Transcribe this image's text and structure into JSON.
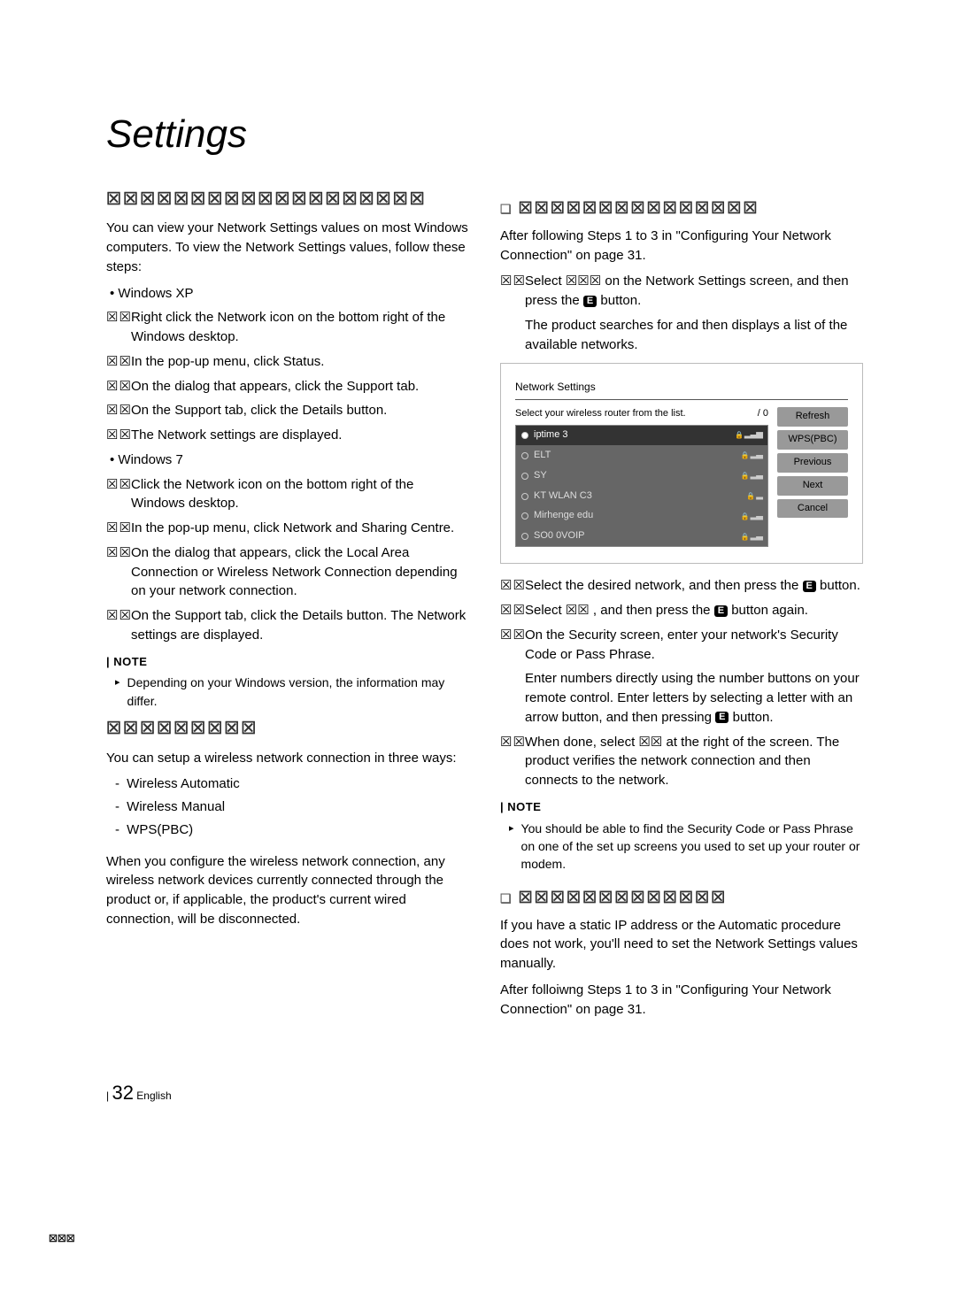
{
  "page_title": "Settings",
  "col1": {
    "h1": "☒☒☒☒☒☒☒☒☒☒☒☒☒☒☒☒☒☒☒",
    "intro": "You can view your Network Settings values on most Windows computers. To view the Network Settings values, follow these steps:",
    "win_xp": "Windows XP",
    "xp_steps": [
      "Right click the Network icon on the bottom right of the Windows desktop.",
      "In the pop-up menu, click Status.",
      "On the dialog that appears, click the Support tab.",
      "On the Support tab, click the Details button.",
      "The Network settings are displayed."
    ],
    "win_7": "Windows 7",
    "w7_steps": [
      "Click the Network icon on the bottom right of the Windows desktop.",
      "In the pop-up menu, click Network and Sharing Centre.",
      "On the dialog that appears, click the Local Area Connection or Wireless Network Connection depending on your network connection.",
      "On the Support tab, click the Details button. The Network settings are displayed."
    ],
    "note_label": "NOTE",
    "note1": "Depending on your Windows version, the information may differ.",
    "h2": "☒☒☒☒☒☒☒☒☒",
    "wireless_intro": "You can setup a wireless network connection in three ways:",
    "wireless_ways": [
      "Wireless Automatic",
      "Wireless Manual",
      "WPS(PBC)"
    ],
    "wireless_note": "When you configure the wireless network connection, any wireless network devices currently connected through the product or, if applicable, the product's current wired connection, will be disconnected."
  },
  "col2": {
    "sub1": "☒☒☒☒☒☒☒☒☒☒☒☒☒☒☒",
    "intro2": "After following Steps 1 to 3 in \"Configuring Your Network Connection\" on page 31.",
    "step1_pre": "Select ",
    "step1_mid": " on the Network Settings screen, and then press the ",
    "step1_post": " button.",
    "step1_cont": "The product searches for and then displays a list of the available networks.",
    "dialog": {
      "title": "Network Settings",
      "sub": "Select your wireless router from the list.",
      "count": "/ 0",
      "rows": [
        {
          "name": "iptime 3",
          "sig": "▂▃▅",
          "sel": true
        },
        {
          "name": "ELT",
          "sig": "▂▃",
          "sel": false
        },
        {
          "name": "SY",
          "sig": "▂▃",
          "sel": false
        },
        {
          "name": "KT WLAN C3",
          "sig": "▂",
          "sel": false
        },
        {
          "name": "Mirhenge edu",
          "sig": "▂▃",
          "sel": false
        },
        {
          "name": "SO0 0VOIP",
          "sig": "▂▃",
          "sel": false
        }
      ],
      "buttons": [
        "Refresh",
        "WPS(PBC)",
        "Previous",
        "Next",
        "Cancel"
      ]
    },
    "step2_pre": "Select the desired network, and then press the ",
    "step2_post": " button.",
    "step3_pre": "Select ",
    "step3_mid": " , and then press the ",
    "step3_post": " button again.",
    "step4": "On the Security screen, enter your network's Security Code or Pass Phrase.",
    "step4_cont": "Enter numbers directly using the number buttons on your remote control. Enter letters by selecting a letter with an arrow button, and then pressing ",
    "step4_cont_post": " button.",
    "step5_pre": "When done, select ",
    "step5_mid": " at the right of the screen. The product verifies the network connection and then connects to the network.",
    "note_label": "NOTE",
    "note2": "You should be able to find the Security Code or Pass Phrase on one of the set up screens you used to set up your router or modem.",
    "sub2": "☒☒☒☒☒☒☒☒☒☒☒☒☒",
    "manual_p1": "If you have a static IP address or the Automatic procedure does not work, you'll need to set the Network Settings values manually.",
    "manual_p2": "After folloiwng Steps 1 to 3 in \"Configuring Your Network Connection\" on page 31."
  },
  "footer": {
    "page_num": "32",
    "lang": "English",
    "left_mark": "☒☒☒"
  },
  "icons": {
    "enter": "E"
  }
}
